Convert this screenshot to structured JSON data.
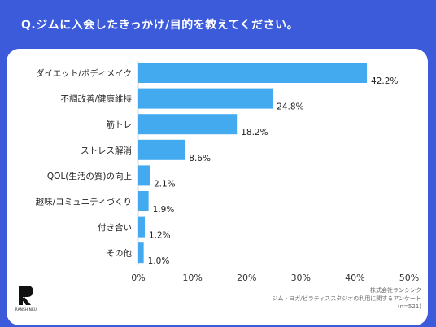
{
  "header": {
    "title": "Q.ジムに入会したきっかけ/目的を教えてください。"
  },
  "chart_data": {
    "type": "bar",
    "orientation": "horizontal",
    "categories": [
      "ダイエット/ボディメイク",
      "不調改善/健康維持",
      "筋トレ",
      "ストレス解消",
      "QOL(生活の質)の向上",
      "趣味/コミュニティづくり",
      "付き合い",
      "その他"
    ],
    "values": [
      42.2,
      24.8,
      18.2,
      8.6,
      2.1,
      1.9,
      1.2,
      1.0
    ],
    "value_labels": [
      "42.2%",
      "24.8%",
      "18.2%",
      "8.6%",
      "2.1%",
      "1.9%",
      "1.2%",
      "1.0%"
    ],
    "xlim": [
      0,
      50
    ],
    "ticks": [
      0,
      10,
      20,
      30,
      40,
      50
    ],
    "tick_labels": [
      "0%",
      "10%",
      "20%",
      "30%",
      "40%",
      "50%"
    ],
    "bar_color": "#44aaf0",
    "grid": false
  },
  "footer": {
    "logo_text": "RANSHINKU",
    "source_lines": [
      "株式会社ランシンク",
      "ジム・ヨガ/ピラティススタジオの利用に関するアンケート",
      "(n=521)"
    ]
  },
  "colors": {
    "background": "#3b5bdb",
    "card": "#ffffff",
    "bar": "#44aaf0"
  }
}
